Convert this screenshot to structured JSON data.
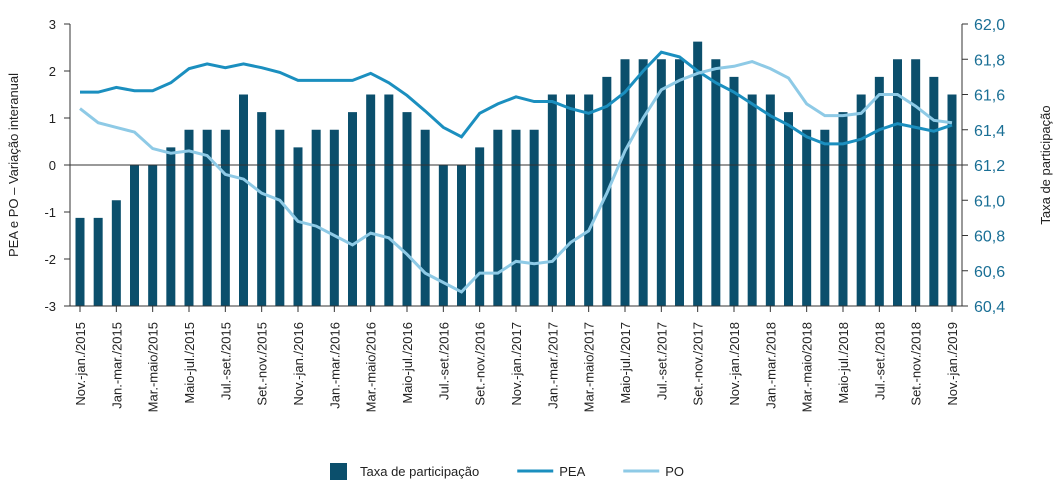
{
  "chart_data": {
    "type": "bar-line",
    "y_label": "PEA e PO – Variação interanual",
    "y2_label": "Taxa de participação",
    "categories": [
      "Nov.-jan./2015",
      null,
      "Jan.-mar./2015",
      null,
      "Mar.-maio/2015",
      null,
      "Maio-jul./2015",
      null,
      "Jul.-set./2015",
      null,
      "Set.-nov./2015",
      null,
      "Nov.-jan./2016",
      null,
      "Jan.-mar./2016",
      null,
      "Mar.-maio/2016",
      null,
      "Maio-jul./2016",
      null,
      "Jul.-set./2016",
      null,
      "Set.-nov./2016",
      null,
      "Nov.-jan./2017",
      null,
      "Jan.-mar./2017",
      null,
      "Mar.-maio/2017",
      null,
      "Maio-jul./2017",
      null,
      "Jul.-set./2017",
      null,
      "Set.-nov./2017",
      null,
      "Nov.-jan./2018",
      null,
      "Jan.-mar./2018",
      null,
      "Mar.-maio/2018",
      null,
      "Maio-jul./2018",
      null,
      "Jul.-set./2018",
      null,
      "Set.-nov./2018",
      null,
      "Nov.-jan./2019"
    ],
    "series": [
      {
        "name": "Taxa de participação",
        "type": "bar",
        "axis": "y2",
        "color": "#0b4f6c",
        "values": [
          60.9,
          60.9,
          61.0,
          61.2,
          61.2,
          61.3,
          61.4,
          61.4,
          61.4,
          61.6,
          61.5,
          61.4,
          61.3,
          61.4,
          61.4,
          61.5,
          61.6,
          61.6,
          61.5,
          61.4,
          61.2,
          61.2,
          61.3,
          61.4,
          61.4,
          61.4,
          61.6,
          61.6,
          61.6,
          61.7,
          61.8,
          61.8,
          61.8,
          61.8,
          61.9,
          61.8,
          61.7,
          61.6,
          61.6,
          61.5,
          61.4,
          61.4,
          61.5,
          61.6,
          61.7,
          61.8,
          61.8,
          61.7,
          61.6
        ]
      },
      {
        "name": "PEA",
        "type": "line",
        "color": "#1b8fbf",
        "values": [
          1.55,
          1.55,
          1.65,
          1.58,
          1.58,
          1.75,
          2.05,
          2.15,
          2.07,
          2.15,
          2.07,
          1.97,
          1.8,
          1.8,
          1.8,
          1.8,
          1.95,
          1.75,
          1.48,
          1.15,
          0.8,
          0.6,
          1.1,
          1.3,
          1.45,
          1.35,
          1.35,
          1.2,
          1.1,
          1.25,
          1.55,
          2.0,
          2.4,
          2.3,
          2.0,
          1.75,
          1.55,
          1.3,
          1.05,
          0.85,
          0.6,
          0.45,
          0.45,
          0.55,
          0.75,
          0.88,
          0.8,
          0.72,
          0.85
        ]
      },
      {
        "name": "PO",
        "type": "line",
        "color": "#8ecae6",
        "values": [
          1.2,
          0.9,
          0.8,
          0.7,
          0.35,
          0.25,
          0.3,
          0.2,
          -0.2,
          -0.3,
          -0.6,
          -0.75,
          -1.2,
          -1.3,
          -1.5,
          -1.7,
          -1.45,
          -1.55,
          -1.9,
          -2.3,
          -2.5,
          -2.7,
          -2.3,
          -2.3,
          -2.05,
          -2.1,
          -2.05,
          -1.65,
          -1.4,
          -0.6,
          0.3,
          1.0,
          1.6,
          1.8,
          1.95,
          2.05,
          2.1,
          2.2,
          2.05,
          1.85,
          1.3,
          1.05,
          1.05,
          1.1,
          1.5,
          1.5,
          1.25,
          0.95,
          0.9
        ]
      }
    ],
    "ylim": [
      -3,
      3
    ],
    "yticks": [
      -3,
      -2,
      -1,
      0,
      1,
      2,
      3
    ],
    "y2lim": [
      60.4,
      62.0
    ],
    "y2ticks": [
      {
        "value": 60.4,
        "label": "60,4"
      },
      {
        "value": 60.6,
        "label": "60,6"
      },
      {
        "value": 60.8,
        "label": "60,8"
      },
      {
        "value": 61.0,
        "label": "61,0"
      },
      {
        "value": 61.2,
        "label": "61,2"
      },
      {
        "value": 61.4,
        "label": "61,4"
      },
      {
        "value": 61.6,
        "label": "61,6"
      },
      {
        "value": 61.8,
        "label": "61,8"
      },
      {
        "value": 62.0,
        "label": "62,0"
      }
    ],
    "y2_tick_color": "#1a6f95",
    "legend": "bottom"
  }
}
